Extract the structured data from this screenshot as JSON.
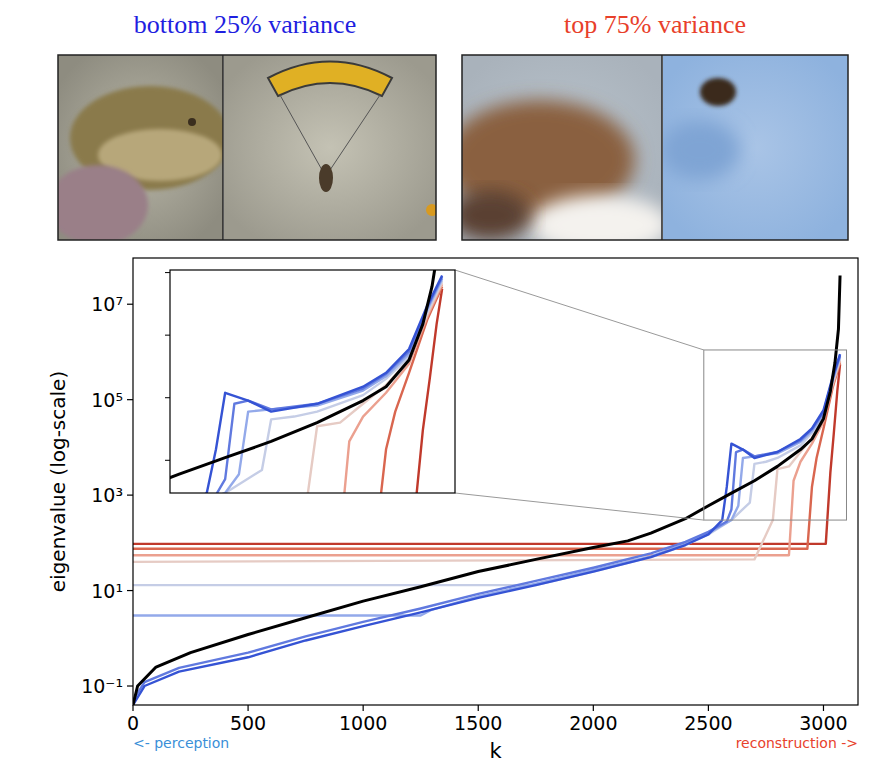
{
  "header": {
    "left_title": "bottom 25% variance",
    "right_title": "top 75% variance"
  },
  "chart_data": {
    "type": "line",
    "xlabel": "k",
    "ylabel": "eigenvalue (log-scale)",
    "log": "y",
    "xlim": [
      0,
      3150
    ],
    "ylim": [
      0.04,
      93000000
    ],
    "xticks": [
      0,
      500,
      1000,
      1500,
      2000,
      2500,
      3000
    ],
    "yticks": [
      {
        "value": 0.1,
        "label": "10⁻¹"
      },
      {
        "value": 10,
        "label": "10¹"
      },
      {
        "value": 1000,
        "label": "10³"
      },
      {
        "value": 100000,
        "label": "10⁵"
      },
      {
        "value": 10000000,
        "label": "10⁷"
      }
    ],
    "annotations": [
      {
        "text": "<- perception",
        "color": "#3a8fd8"
      },
      {
        "text": "reconstruction ->",
        "color": "#e8412c"
      }
    ],
    "inset": {
      "xlim": [
        2480,
        3100
      ],
      "ylim": [
        300,
        1100000
      ],
      "yticks": [
        1000,
        10000,
        100000,
        1000000
      ],
      "tick_labels": false
    },
    "series": [
      {
        "color": "#c0392b",
        "x": [
          0,
          1000,
          2000,
          3010,
          3030,
          3045,
          3060,
          3072
        ],
        "values": [
          95,
          95,
          95,
          95,
          3000,
          20000,
          150000,
          550000
        ]
      },
      {
        "color": "#d9664f",
        "x": [
          0,
          2930,
          2950,
          2970,
          3000,
          3040,
          3072
        ],
        "values": [
          75,
          75,
          1500,
          6000,
          25000,
          180000,
          600000
        ]
      },
      {
        "color": "#eba08f",
        "x": [
          0,
          2850,
          2870,
          2900,
          2950,
          3000,
          3040,
          3072
        ],
        "values": [
          55,
          55,
          2000,
          5000,
          12000,
          35000,
          200000,
          650000
        ]
      },
      {
        "color": "#e6cbc4",
        "x": [
          0,
          2700,
          2780,
          2800,
          2850,
          2900,
          2950,
          3000,
          3040,
          3072
        ],
        "values": [
          40,
          45,
          300,
          3500,
          4000,
          8000,
          16000,
          40000,
          220000,
          700000
        ]
      },
      {
        "color": "#c5cde6",
        "x": [
          0,
          1750,
          2000,
          2250,
          2400,
          2500,
          2600,
          2680,
          2700,
          2750,
          2800,
          2900,
          2950,
          3000,
          3040,
          3072
        ],
        "values": [
          13,
          13,
          25,
          50,
          90,
          150,
          300,
          700,
          4500,
          5000,
          6000,
          11000,
          20000,
          45000,
          240000,
          750000
        ]
      },
      {
        "color": "#93a9ea",
        "x": [
          0,
          1250,
          1300,
          1500,
          1750,
          2000,
          2250,
          2400,
          2500,
          2600,
          2630,
          2650,
          2700,
          2800,
          2900,
          2950,
          3000,
          3040,
          3072
        ],
        "values": [
          3,
          3,
          4,
          7.5,
          14,
          27,
          52,
          95,
          160,
          300,
          600,
          6000,
          6500,
          7500,
          13000,
          22000,
          50000,
          260000,
          800000
        ]
      },
      {
        "color": "#6079df",
        "x": [
          0,
          50,
          200,
          500,
          750,
          1000,
          1250,
          1500,
          1750,
          2000,
          2250,
          2400,
          2500,
          2580,
          2600,
          2620,
          2650,
          2700,
          2800,
          2900,
          2950,
          3000,
          3040,
          3072
        ],
        "values": [
          0.05,
          0.12,
          0.24,
          0.5,
          1.1,
          2.2,
          4.2,
          8.5,
          16,
          30,
          60,
          105,
          170,
          280,
          500,
          8000,
          9000,
          6500,
          8000,
          14000,
          24000,
          55000,
          280000,
          850000
        ]
      },
      {
        "color": "#3553d4",
        "x": [
          0,
          50,
          200,
          500,
          750,
          1000,
          1250,
          1500,
          1750,
          2000,
          2250,
          2400,
          2500,
          2560,
          2580,
          2600,
          2650,
          2700,
          2800,
          2900,
          2950,
          3000,
          3040,
          3072
        ],
        "values": [
          0.04,
          0.1,
          0.2,
          0.4,
          0.9,
          1.8,
          3.5,
          7,
          13,
          25,
          50,
          90,
          150,
          300,
          1500,
          12000,
          9000,
          6000,
          8000,
          15000,
          25000,
          60000,
          300000,
          900000
        ]
      },
      {
        "color": "#000000",
        "x": [
          0,
          20,
          100,
          250,
          500,
          750,
          1000,
          1250,
          1500,
          1750,
          2000,
          2150,
          2250,
          2400,
          2500,
          2600,
          2700,
          2800,
          2900,
          2950,
          3000,
          3030,
          3050,
          3065,
          3072
        ],
        "values": [
          0.04,
          0.1,
          0.25,
          0.5,
          1.2,
          2.7,
          6,
          12,
          25,
          45,
          80,
          110,
          160,
          320,
          600,
          1100,
          2000,
          4000,
          9000,
          15000,
          40000,
          150000,
          600000,
          3000000,
          40000000
        ]
      }
    ]
  }
}
